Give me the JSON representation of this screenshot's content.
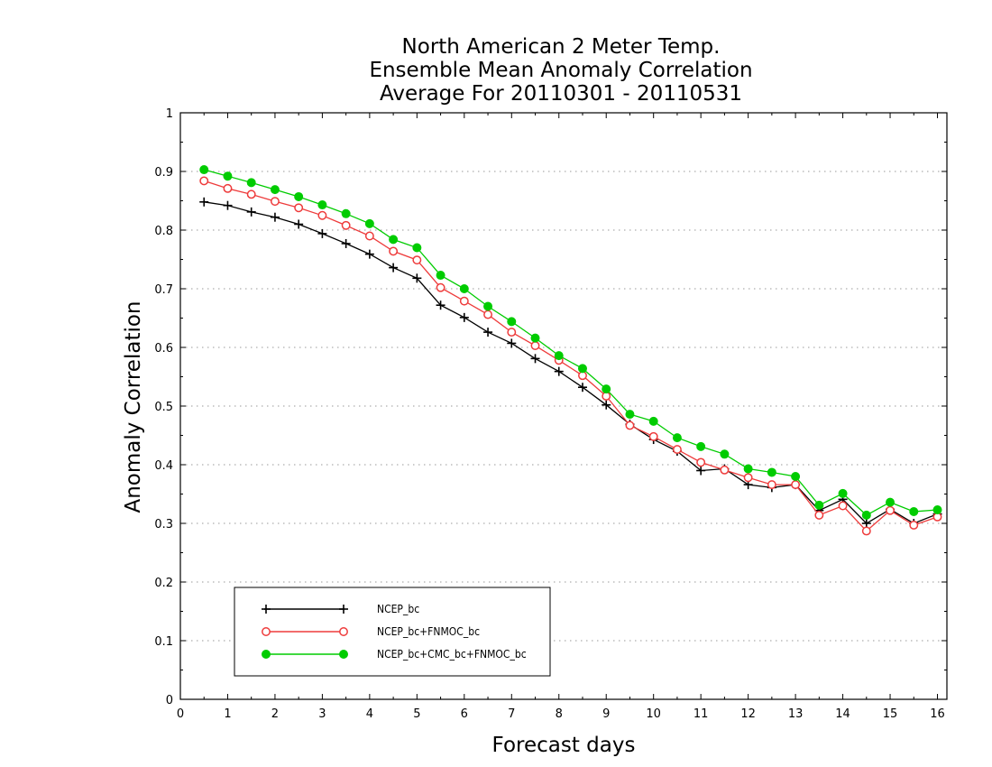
{
  "chart_data": {
    "type": "line",
    "title": [
      "North American 2 Meter Temp.",
      "Ensemble Mean Anomaly Correlation",
      "Average For 20110301 - 20110531"
    ],
    "xlabel": "Forecast days",
    "ylabel": "Anomaly Correlation",
    "xlim": [
      0,
      16.2
    ],
    "ylim": [
      0,
      1
    ],
    "x_ticks": [
      0,
      1,
      2,
      3,
      4,
      5,
      6,
      7,
      8,
      9,
      10,
      11,
      12,
      13,
      14,
      15,
      16
    ],
    "x_tick_labels": [
      "0",
      "1",
      "2",
      "3",
      "4",
      "5",
      "6",
      "7",
      "8",
      "9",
      "10",
      "11",
      "12",
      "13",
      "14",
      "15",
      "16"
    ],
    "y_ticks": [
      0,
      0.1,
      0.2,
      0.3,
      0.4,
      0.5,
      0.6,
      0.7,
      0.8,
      0.9,
      1
    ],
    "y_tick_labels": [
      "0",
      "0.1",
      "0.2",
      "0.3",
      "0.4",
      "0.5",
      "0.6",
      "0.7",
      "0.8",
      "0.9",
      "1"
    ],
    "grid": "horizontal-dotted",
    "legend_position": "bottom-left",
    "x": [
      0.5,
      1.0,
      1.5,
      2.0,
      2.5,
      3.0,
      3.5,
      4.0,
      4.5,
      5.0,
      5.5,
      6.0,
      6.5,
      7.0,
      7.5,
      8.0,
      8.5,
      9.0,
      9.5,
      10.0,
      10.5,
      11.0,
      11.5,
      12.0,
      12.5,
      13.0,
      13.5,
      14.0,
      14.5,
      15.0,
      15.5,
      16.0
    ],
    "series": [
      {
        "name": "NCEP_bc",
        "color": "#000000",
        "marker": "plus",
        "values": [
          0.848,
          0.842,
          0.831,
          0.822,
          0.81,
          0.794,
          0.777,
          0.759,
          0.736,
          0.718,
          0.672,
          0.651,
          0.626,
          0.607,
          0.581,
          0.559,
          0.532,
          0.502,
          0.469,
          0.443,
          0.423,
          0.39,
          0.393,
          0.366,
          0.361,
          0.366,
          0.322,
          0.341,
          0.3,
          0.324,
          0.3,
          0.316
        ]
      },
      {
        "name": "NCEP_bc+FNMOC_bc",
        "color": "#ee3b3b",
        "marker": "open-circle",
        "values": [
          0.884,
          0.871,
          0.861,
          0.849,
          0.838,
          0.825,
          0.808,
          0.79,
          0.764,
          0.749,
          0.702,
          0.679,
          0.656,
          0.626,
          0.603,
          0.578,
          0.552,
          0.517,
          0.467,
          0.448,
          0.426,
          0.404,
          0.391,
          0.378,
          0.366,
          0.366,
          0.314,
          0.33,
          0.287,
          0.322,
          0.297,
          0.311
        ]
      },
      {
        "name": "NCEP_bc+CMC_bc+FNMOC_bc",
        "color": "#00cc00",
        "marker": "filled-circle",
        "values": [
          0.903,
          0.892,
          0.881,
          0.869,
          0.857,
          0.843,
          0.828,
          0.811,
          0.784,
          0.77,
          0.723,
          0.7,
          0.67,
          0.644,
          0.616,
          0.586,
          0.564,
          0.529,
          0.486,
          0.474,
          0.446,
          0.431,
          0.418,
          0.393,
          0.387,
          0.38,
          0.331,
          0.351,
          0.314,
          0.336,
          0.32,
          0.323
        ]
      }
    ]
  }
}
